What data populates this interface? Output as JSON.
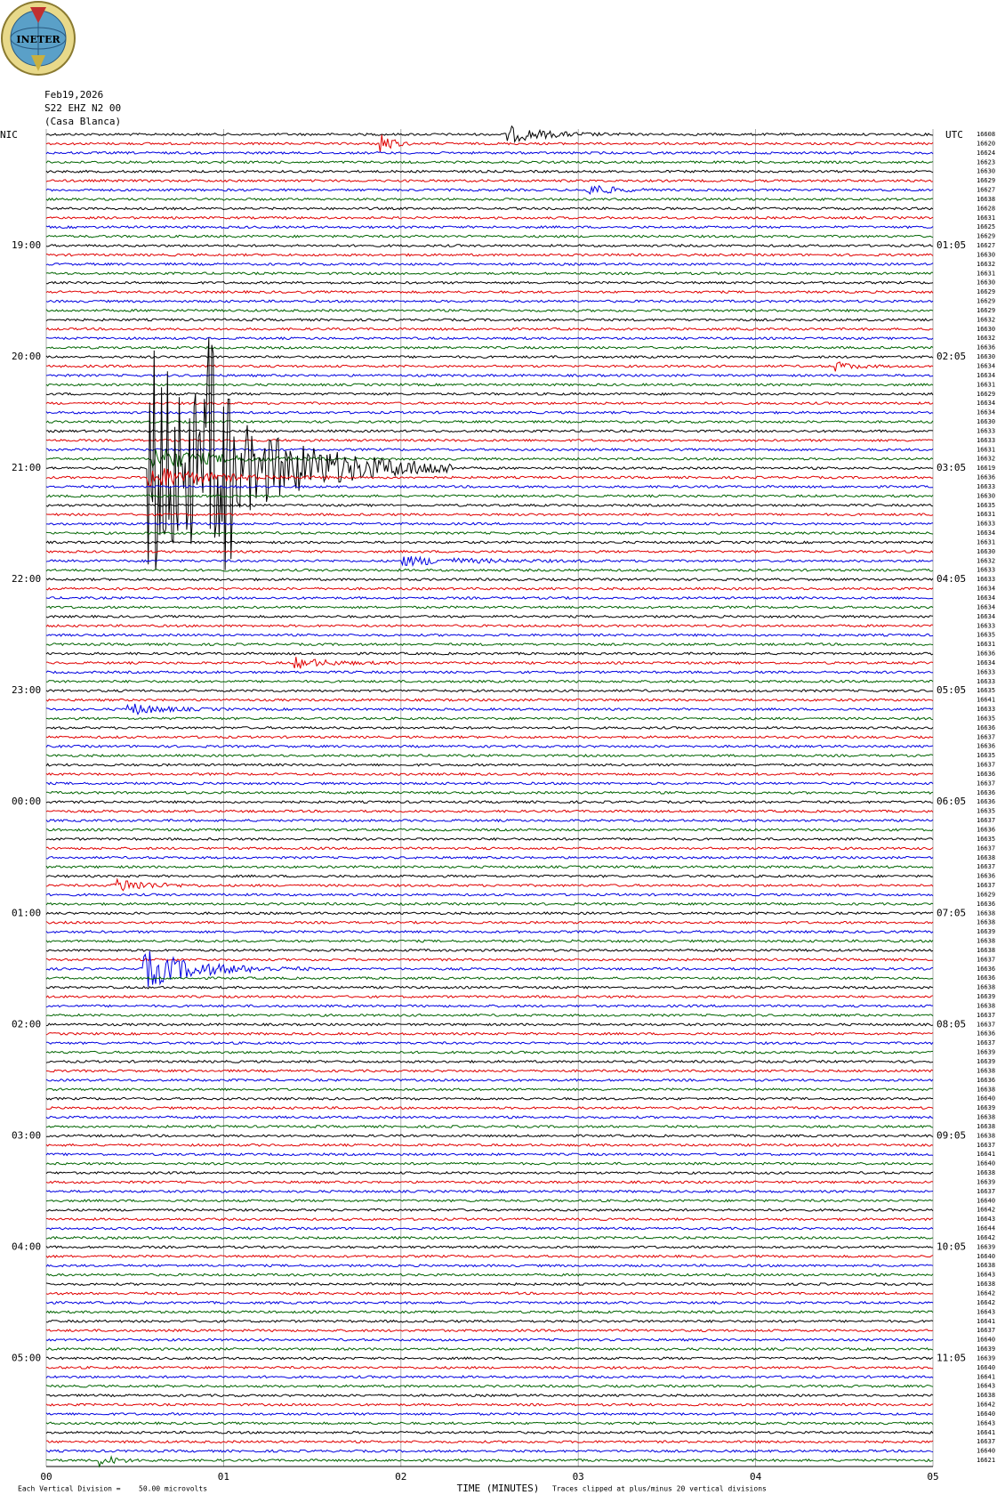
{
  "header": {
    "logo": "INETER",
    "date": "Feb19,2026",
    "station": "S22 EHZ N2 00",
    "location": "(Casa Blanca)",
    "left_zone": "NIC",
    "right_zone": "UTC"
  },
  "left_time_labels": [
    "19:00",
    "20:00",
    "21:00",
    "22:00",
    "23:00",
    "00:00",
    "01:00",
    "02:00",
    "03:00",
    "04:00",
    "05:00"
  ],
  "right_time_labels": [
    "01:05",
    "02:05",
    "03:05",
    "04:05",
    "05:05",
    "06:05",
    "07:05",
    "08:05",
    "09:05",
    "10:05",
    "11:05"
  ],
  "trace_labels": [
    16608,
    16620,
    16624,
    16623,
    16630,
    16629,
    16627,
    16638,
    16628,
    16631,
    16625,
    16629,
    16627,
    16630,
    16632,
    16631,
    16630,
    16629,
    16629,
    16629,
    16632,
    16630,
    16632,
    16636,
    16630,
    16634,
    16634,
    16631,
    16629,
    16634,
    16634,
    16630,
    16633,
    16633,
    16631,
    16632,
    16619,
    16636,
    16633,
    16630,
    16635,
    16631,
    16633,
    16634,
    16631,
    16630,
    16632,
    16633,
    16633,
    16634,
    16634,
    16634,
    16634,
    16633,
    16635,
    16631,
    16636,
    16634,
    16633,
    16633,
    16635,
    16641,
    16633,
    16635,
    16636,
    16637,
    16636,
    16635,
    16637,
    16636,
    16637,
    16636,
    16636,
    16635,
    16637,
    16636,
    16635,
    16637,
    16638,
    16637,
    16636,
    16637,
    16629,
    16636,
    16638,
    16638,
    16639,
    16638,
    16638,
    16637,
    16636,
    16636,
    16638,
    16639,
    16638,
    16637,
    16637,
    16636,
    16637,
    16639,
    16639,
    16638,
    16636,
    16638,
    16640,
    16639,
    16638,
    16638,
    16638,
    16637,
    16641,
    16640,
    16638,
    16639,
    16637,
    16640,
    16642,
    16643,
    16644,
    16642,
    16639,
    16640,
    16638,
    16643,
    16638,
    16642,
    16642,
    16643,
    16641,
    16637,
    16640,
    16639,
    16639,
    16640,
    16641,
    16643,
    16638,
    16642,
    16640,
    16643,
    16641,
    16637,
    16640,
    16621
  ],
  "trace_colors": [
    "#000000",
    "#e00000",
    "#0000e0",
    "#006400"
  ],
  "x_axis": {
    "ticks": [
      "00",
      "01",
      "02",
      "03",
      "04",
      "05"
    ],
    "label": "TIME (MINUTES)"
  },
  "footer": {
    "scale_label": "Each Vertical Division =",
    "scale_value": "50.00 microvolts",
    "clip_note": "Traces clipped at plus/minus 20 vertical divisions"
  }
}
